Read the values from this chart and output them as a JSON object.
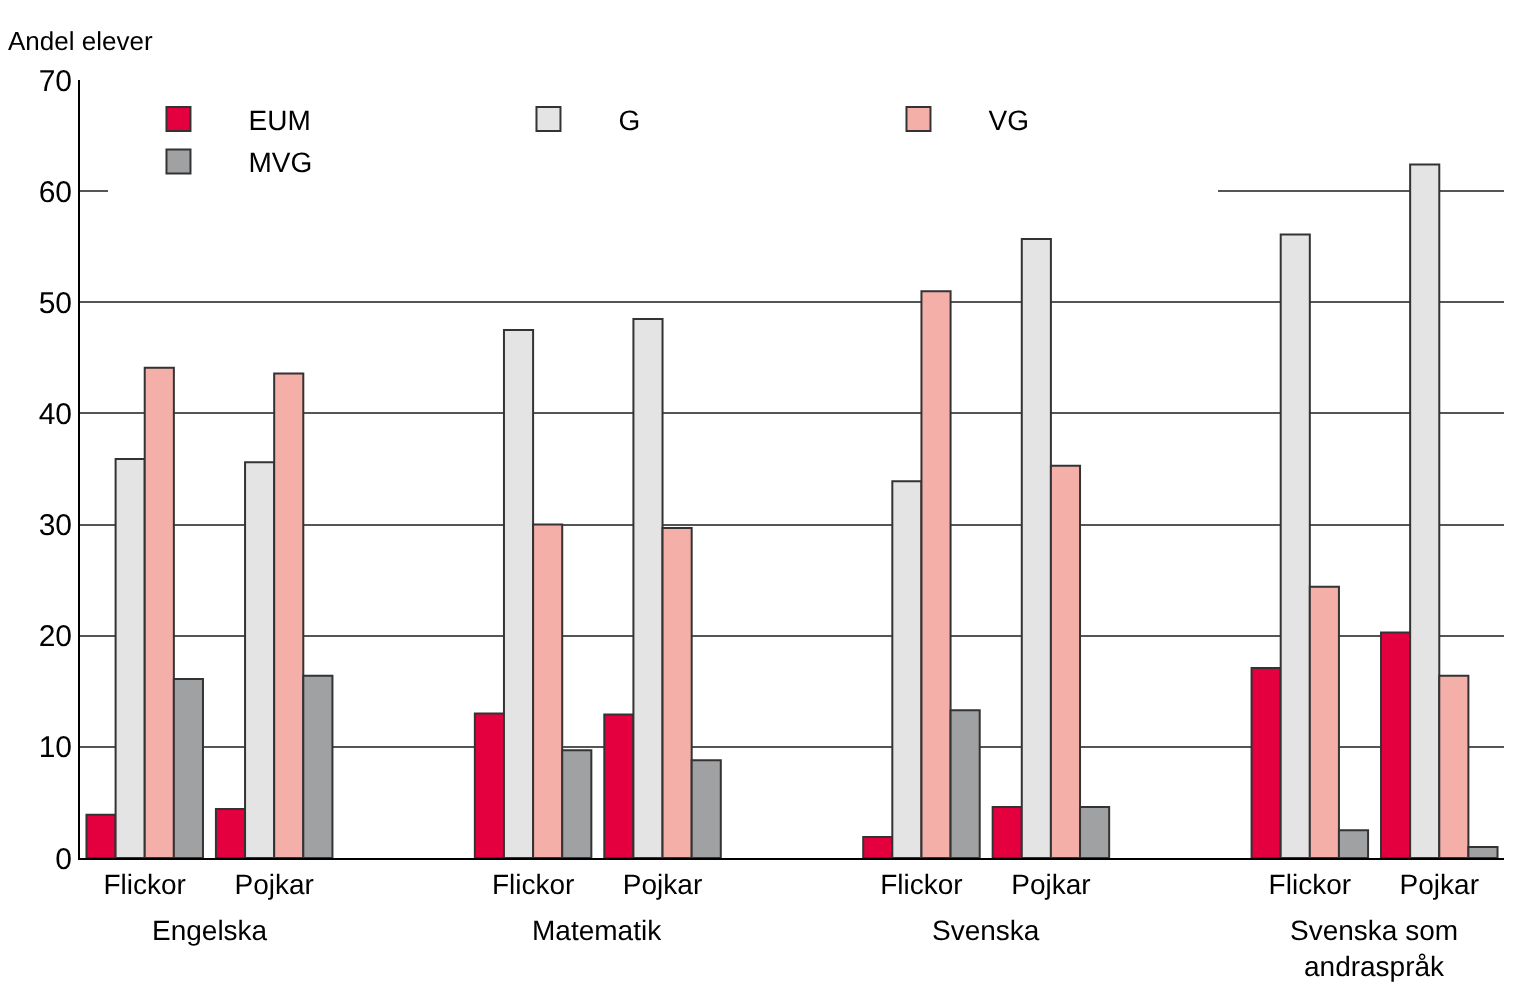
{
  "chart_data": {
    "type": "bar",
    "ylabel": "Andel elever",
    "categories": [
      "Flickor",
      "Pojkar",
      null,
      "Flickor",
      "Pojkar",
      null,
      "Flickor",
      "Pojkar",
      null,
      "Flickor",
      "Pojkar"
    ],
    "series": [
      {
        "name": "EUM",
        "color": "#e4003f",
        "values": [
          3.9,
          4.4,
          null,
          13.0,
          12.9,
          null,
          1.9,
          4.6,
          null,
          17.1,
          20.3
        ]
      },
      {
        "name": "G",
        "color": "#e3e4e3",
        "values": [
          35.9,
          35.6,
          null,
          47.5,
          48.5,
          null,
          33.9,
          55.7,
          null,
          56.1,
          62.4
        ]
      },
      {
        "name": "VG",
        "color": "#f4afa9",
        "values": [
          44.1,
          43.6,
          null,
          30.0,
          29.7,
          null,
          51.0,
          35.3,
          null,
          24.4,
          16.4
        ]
      },
      {
        "name": "MVG",
        "color": "#a0a1a3",
        "values": [
          16.1,
          16.4,
          null,
          9.7,
          8.8,
          null,
          13.3,
          4.6,
          null,
          2.5,
          1.0
        ]
      }
    ],
    "annotations": [
      "Engelska",
      "Matematik",
      "Svenska",
      "Svenska som andraspråk"
    ],
    "ylim": [
      0,
      70
    ],
    "yticks": [
      0,
      10,
      20,
      30,
      40,
      50,
      60,
      70
    ],
    "grid": "y",
    "legend": "top"
  }
}
